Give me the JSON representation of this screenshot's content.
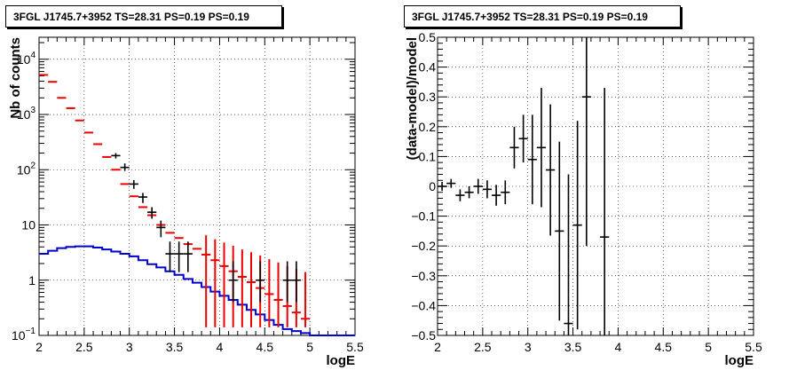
{
  "chart_data": [
    {
      "type": "step",
      "title": "3FGL J1745.7+3952 TS=28.31 PS=0.19 PS=0.19",
      "xlabel": "logE",
      "ylabel": "Nb of counts",
      "xlim": [
        2,
        5.5
      ],
      "ylim": [
        0.1,
        25000
      ],
      "yscale": "log",
      "grid": true,
      "xticks": [
        "2",
        "2.5",
        "3",
        "3.5",
        "4",
        "4.5",
        "5",
        "5.5"
      ],
      "yticks": [
        {
          "v": 0.1,
          "base": "10",
          "exp": "−1",
          "text": ""
        },
        {
          "v": 1,
          "base": "1",
          "exp": "",
          "text": "1"
        },
        {
          "v": 10,
          "base": "10",
          "exp": "",
          "text": "10"
        },
        {
          "v": 100,
          "base": "10",
          "exp": "2",
          "text": ""
        },
        {
          "v": 1000,
          "base": "10",
          "exp": "3",
          "text": ""
        },
        {
          "v": 10000,
          "base": "10",
          "exp": "4",
          "text": ""
        }
      ],
      "series": [
        {
          "role": "model_total",
          "color": "#ee0000",
          "x": [
            2.05,
            2.15,
            2.25,
            2.35,
            2.45,
            2.55,
            2.65,
            2.75,
            2.85,
            2.95,
            3.05,
            3.15,
            3.25,
            3.35,
            3.45,
            3.55,
            3.65,
            3.75,
            3.85,
            3.95,
            4.05,
            4.15,
            4.25,
            4.35,
            4.45,
            4.55,
            4.65,
            4.75,
            4.85,
            4.95
          ],
          "y": [
            5200,
            3900,
            2000,
            1300,
            780,
            470,
            290,
            170,
            100,
            55,
            33,
            21,
            15,
            10,
            7.2,
            5.8,
            4.5,
            3.7,
            2.9,
            2.3,
            1.8,
            1.45,
            1.15,
            0.92,
            0.72,
            0.56,
            0.44,
            0.34,
            0.26,
            0.2
          ],
          "err_low": [
            0,
            0,
            0,
            0,
            0,
            0,
            0,
            0,
            0,
            0,
            0,
            0,
            0,
            0,
            0,
            0,
            0,
            0,
            0.14,
            0.14,
            0.14,
            0.14,
            0.14,
            0.14,
            0.14,
            0.14,
            0.14,
            0.14,
            0.14,
            0.14
          ],
          "err_high": [
            0,
            0,
            0,
            0,
            0,
            0,
            0,
            0,
            0,
            0,
            0,
            0,
            0,
            0,
            0,
            0,
            0,
            0,
            6.5,
            5.5,
            4.8,
            4.2,
            3.6,
            3.2,
            2.8,
            2.4,
            2.1,
            1.8,
            1.6,
            1.4
          ]
        },
        {
          "role": "data",
          "color": "#000000",
          "x": [
            2.85,
            2.95,
            3.05,
            3.15,
            3.25,
            3.35,
            3.45,
            3.55,
            3.65,
            4.15,
            4.45,
            4.75,
            4.85
          ],
          "y": [
            180,
            110,
            55,
            32,
            17,
            9,
            3,
            3,
            3,
            1,
            1,
            1,
            1
          ],
          "err_low": [
            160,
            95,
            45,
            25,
            13,
            6,
            1.4,
            1.4,
            1.4,
            0.4,
            0.4,
            0.4,
            0.4
          ],
          "err_high": [
            200,
            130,
            65,
            38,
            21,
            12,
            5,
            5,
            5,
            2.2,
            2.2,
            2.2,
            2.2
          ]
        },
        {
          "role": "source_model",
          "color": "#0000cc",
          "x": [
            2.05,
            2.15,
            2.25,
            2.35,
            2.45,
            2.55,
            2.65,
            2.75,
            2.85,
            2.95,
            3.05,
            3.15,
            3.25,
            3.35,
            3.45,
            3.55,
            3.65,
            3.75,
            3.85,
            3.95,
            4.05,
            4.15,
            4.25,
            4.35,
            4.45,
            4.55,
            4.65,
            4.75,
            4.85,
            4.95,
            5.05,
            5.15,
            5.25,
            5.35,
            5.45
          ],
          "y": [
            3.0,
            3.4,
            3.8,
            4.0,
            4.1,
            4.1,
            3.9,
            3.6,
            3.3,
            3.0,
            2.7,
            2.3,
            1.95,
            1.7,
            1.45,
            1.25,
            1.05,
            0.9,
            0.75,
            0.62,
            0.52,
            0.44,
            0.36,
            0.29,
            0.24,
            0.19,
            0.155,
            0.13,
            0.12,
            0.11,
            0.1,
            0.1,
            0.1,
            0.1,
            0.1
          ]
        }
      ]
    },
    {
      "type": "scatter",
      "title": "3FGL J1745.7+3952 TS=28.31 PS=0.19 PS=0.19",
      "xlabel": "logE",
      "ylabel": "(data-model)/model",
      "xlim": [
        2,
        5.5
      ],
      "ylim": [
        -0.5,
        0.5
      ],
      "grid": true,
      "xticks": [
        "2",
        "2.5",
        "3",
        "3.5",
        "4",
        "4.5",
        "5",
        "5.5"
      ],
      "yticks": [
        "−0.5",
        "−0.4",
        "−0.3",
        "−0.2",
        "−0.1",
        "0",
        "0.1",
        "0.2",
        "0.3",
        "0.4",
        "0.5"
      ],
      "series": [
        {
          "role": "residual",
          "color": "#000000",
          "x": [
            2.05,
            2.15,
            2.25,
            2.35,
            2.45,
            2.55,
            2.65,
            2.75,
            2.85,
            2.95,
            3.05,
            3.15,
            3.25,
            3.35,
            3.45,
            3.55,
            3.65,
            3.85
          ],
          "y": [
            0.0,
            0.01,
            -0.03,
            -0.02,
            0.0,
            -0.01,
            -0.03,
            -0.02,
            0.13,
            0.16,
            0.09,
            0.13,
            0.055,
            -0.15,
            -0.46,
            -0.13,
            0.3,
            -0.17
          ],
          "err": [
            0.015,
            0.015,
            0.02,
            0.02,
            0.025,
            0.03,
            0.035,
            0.04,
            0.07,
            0.08,
            0.15,
            0.2,
            0.22,
            0.3,
            0.5,
            0.35,
            0.5,
            0.5
          ]
        }
      ]
    }
  ]
}
